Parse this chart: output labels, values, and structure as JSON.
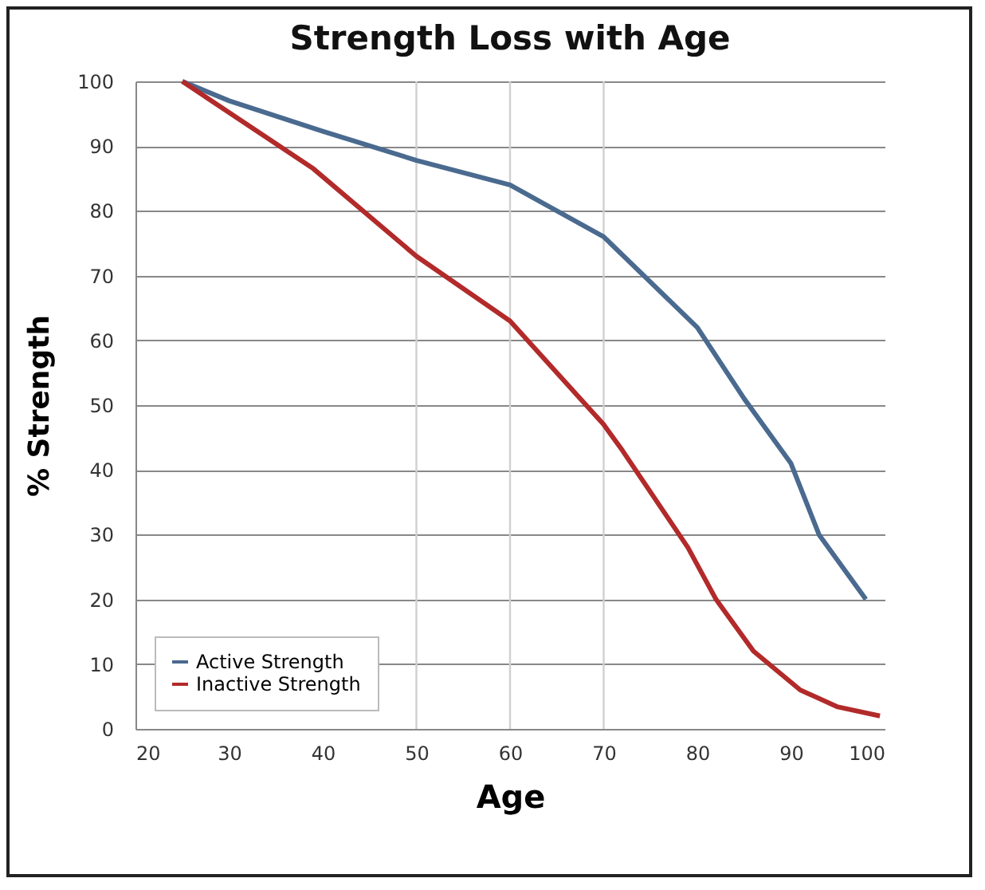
{
  "chart_data": {
    "type": "line",
    "title": "Strength Loss with Age",
    "xlabel": "Age",
    "ylabel": "% Strength",
    "xlim": [
      20,
      100
    ],
    "xticks": [
      20,
      30,
      40,
      50,
      60,
      70,
      80,
      90,
      100
    ],
    "ylim": [
      0,
      100
    ],
    "yticks": [
      0,
      10,
      20,
      30,
      40,
      50,
      60,
      70,
      80,
      90,
      100
    ],
    "grid": "y",
    "legend": "bottom left",
    "line_style": "solid",
    "ref_lines": [
      {
        "axis": "x",
        "value": 50,
        "color": "#d0d0d0"
      },
      {
        "axis": "x",
        "value": 60,
        "color": "#d0d0d0"
      },
      {
        "axis": "x",
        "value": 70,
        "color": "#d0d0d0"
      }
    ],
    "series": [
      {
        "name": "Active Strength",
        "color": "#4a6a8f",
        "x": [
          25,
          30,
          40,
          50,
          60,
          70,
          80,
          85,
          90,
          93,
          98
        ],
        "values": [
          100,
          97,
          92.3,
          87.8,
          84,
          76,
          62,
          51,
          41,
          30,
          20
        ]
      },
      {
        "name": "Inactive Strength",
        "color": "#b22a2a",
        "x": [
          25,
          39,
          50,
          60,
          70,
          72,
          79,
          82,
          86,
          91,
          95,
          99.5
        ],
        "values": [
          100,
          86.5,
          73,
          63,
          47,
          43,
          28,
          20,
          12,
          6,
          3.4,
          2
        ]
      }
    ]
  }
}
